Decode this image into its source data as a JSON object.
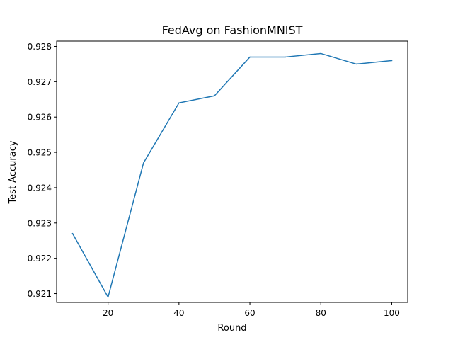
{
  "chart_data": {
    "type": "line",
    "title": "FedAvg on FashionMNIST",
    "xlabel": "Round",
    "ylabel": "Test Accuracy",
    "grid": false,
    "xlim": [
      5.5,
      104.5
    ],
    "ylim": [
      0.92075,
      0.92815
    ],
    "x_ticks": [
      20,
      40,
      60,
      80,
      100
    ],
    "y_ticks": [
      0.921,
      0.922,
      0.923,
      0.924,
      0.925,
      0.926,
      0.927,
      0.928
    ],
    "x_tick_labels": [
      "20",
      "40",
      "60",
      "80",
      "100"
    ],
    "y_tick_labels": [
      "0.921",
      "0.922",
      "0.923",
      "0.924",
      "0.925",
      "0.926",
      "0.927",
      "0.928"
    ],
    "series": [
      {
        "color": "#1f77b4",
        "x": [
          10,
          20,
          30,
          40,
          50,
          60,
          70,
          80,
          90,
          100
        ],
        "y": [
          0.9227,
          0.9209,
          0.9247,
          0.9264,
          0.9266,
          0.9277,
          0.9277,
          0.9278,
          0.9275,
          0.9276
        ]
      }
    ]
  }
}
